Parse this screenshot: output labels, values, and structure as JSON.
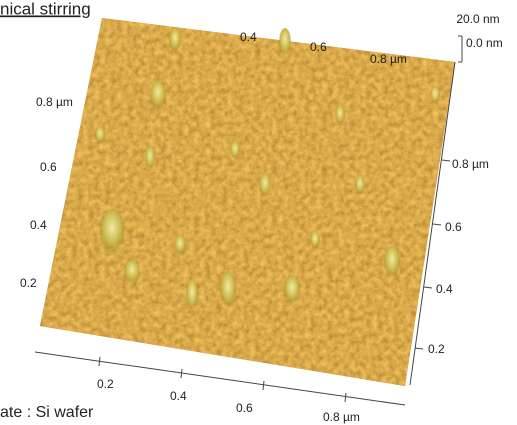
{
  "caption": "nical stirring",
  "scale": {
    "top": "20.0 nm",
    "bottom": "0.0 nm"
  },
  "left_axis": [
    "0.8 µm",
    "0.6",
    "0.4",
    "0.2"
  ],
  "right_axis": [
    "0.8 µm",
    "0.6",
    "0.4",
    "0.2"
  ],
  "bottom_axis": [
    "0.2",
    "0.4",
    "0.6",
    "0.8 µm"
  ],
  "top_axis": [
    "0.4",
    "0.6",
    "0.8 µm"
  ],
  "substrate": "ate : Si wafer"
}
